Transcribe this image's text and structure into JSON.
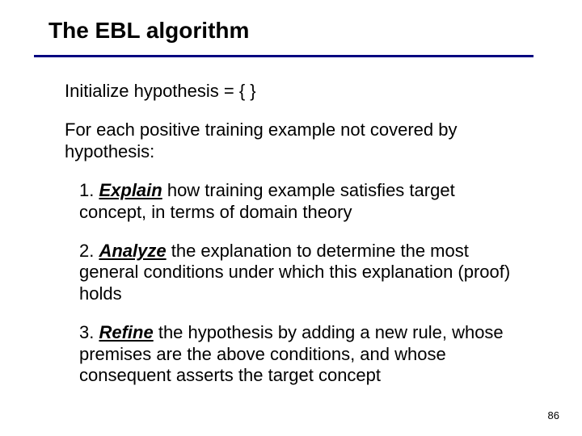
{
  "title": "The EBL algorithm",
  "rule_color": "#000080",
  "para1": "Initialize hypothesis = { }",
  "para2": "For each positive training example not covered by hypothesis:",
  "step1_num": "1. ",
  "step1_kw": "Explain",
  "step1_rest": " how training example satisfies target concept, in terms of domain theory",
  "step2_num": "2. ",
  "step2_kw": "Analyze",
  "step2_rest": " the explanation to determine the most general conditions under which this explanation (proof) holds",
  "step3_num": "3. ",
  "step3_kw": "Refine",
  "step3_rest": " the hypothesis by adding a new rule, whose premises are the above conditions, and whose consequent asserts the target concept",
  "page_number": "86",
  "title_fontsize": 28,
  "body_fontsize": 22,
  "background_color": "#ffffff",
  "text_color": "#000000"
}
